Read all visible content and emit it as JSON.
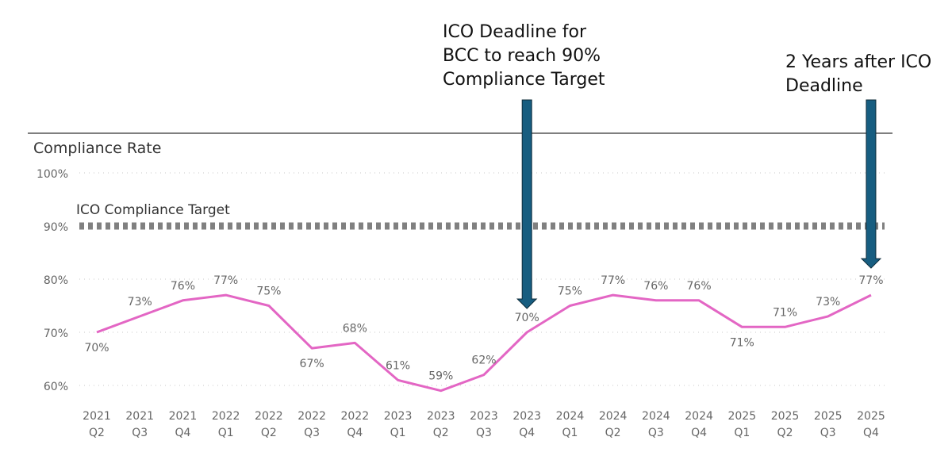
{
  "chart_data": {
    "type": "line",
    "title": "Compliance Rate",
    "xlabel": "",
    "ylabel": "",
    "ylim": [
      60,
      100
    ],
    "y_ticks": [
      "60%",
      "70%",
      "80%",
      "90%",
      "100%"
    ],
    "y_tick_values": [
      60,
      70,
      80,
      90,
      100
    ],
    "grid": true,
    "categories": [
      [
        "2021",
        "Q2"
      ],
      [
        "2021",
        "Q3"
      ],
      [
        "2021",
        "Q4"
      ],
      [
        "2022",
        "Q1"
      ],
      [
        "2022",
        "Q2"
      ],
      [
        "2022",
        "Q3"
      ],
      [
        "2022",
        "Q4"
      ],
      [
        "2023",
        "Q1"
      ],
      [
        "2023",
        "Q2"
      ],
      [
        "2023",
        "Q3"
      ],
      [
        "2023",
        "Q4"
      ],
      [
        "2024",
        "Q1"
      ],
      [
        "2024",
        "Q2"
      ],
      [
        "2024",
        "Q3"
      ],
      [
        "2024",
        "Q4"
      ],
      [
        "2025",
        "Q1"
      ],
      [
        "2025",
        "Q2"
      ],
      [
        "2025",
        "Q3"
      ],
      [
        "2025",
        "Q4"
      ]
    ],
    "series": [
      {
        "values": [
          70,
          73,
          76,
          77,
          75,
          67,
          68,
          61,
          59,
          62,
          70,
          75,
          77,
          76,
          76,
          71,
          71,
          73,
          77
        ],
        "labels": [
          "70%",
          "73%",
          "76%",
          "77%",
          "75%",
          "67%",
          "68%",
          "61%",
          "59%",
          "62%",
          "70%",
          "75%",
          "77%",
          "76%",
          "76%",
          "71%",
          "71%",
          "73%",
          "77%"
        ],
        "color": "#e366c4"
      }
    ],
    "reference_line": {
      "label": "ICO Compliance Target",
      "value": 90,
      "color": "#808080",
      "style": "dashed"
    },
    "annotations": [
      {
        "text": "ICO Deadline for\nBCC to reach 90%\nCompliance Target",
        "category_index": 10
      },
      {
        "text": "2 Years after ICO\nDeadline",
        "category_index": 18
      }
    ],
    "arrow_color": "#175d80"
  }
}
